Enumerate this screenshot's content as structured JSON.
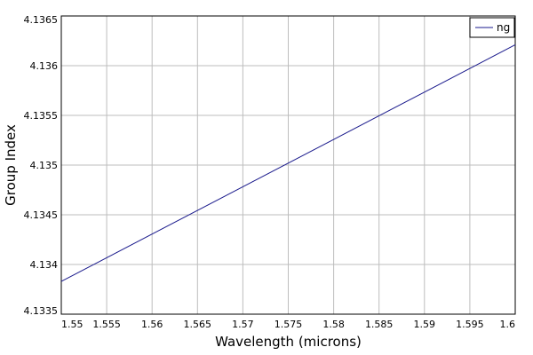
{
  "chart_data": {
    "type": "line",
    "xlabel": "Wavelength (microns)",
    "ylabel": "Group Index",
    "xlim": [
      1.55,
      1.6
    ],
    "ylim": [
      4.1335,
      4.1365
    ],
    "x_ticks": [
      "1.55",
      "1.555",
      "1.56",
      "1.565",
      "1.57",
      "1.575",
      "1.58",
      "1.585",
      "1.59",
      "1.595",
      "1.6"
    ],
    "y_ticks": [
      "4.1335",
      "4.134",
      "4.1345",
      "4.135",
      "4.1355",
      "4.136",
      "4.1365"
    ],
    "grid": true,
    "legend_position": "top-right",
    "series": [
      {
        "name": "ng",
        "color": "#1a1a8c",
        "x": [
          1.55,
          1.6
        ],
        "y": [
          4.13383,
          4.13621
        ]
      }
    ]
  }
}
